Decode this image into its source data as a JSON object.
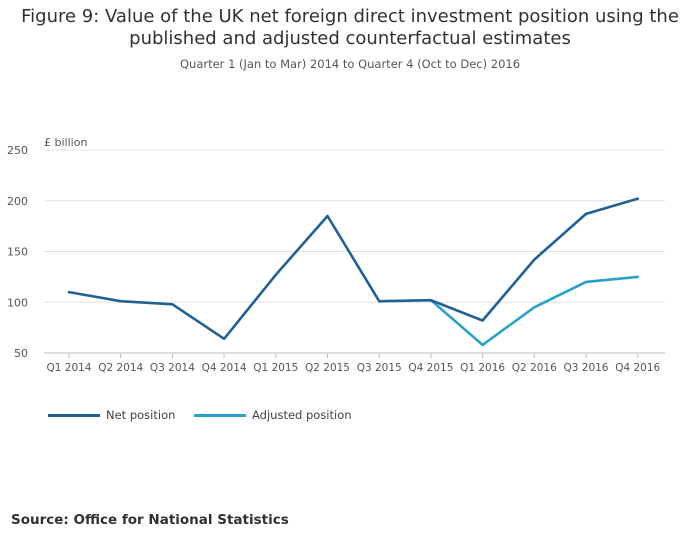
{
  "title": "Figure 9: Value of the UK net foreign direct investment position using the published and adjusted counterfactual estimates",
  "subtitle": "Quarter 1 (Jan to Mar) 2014 to Quarter 4 (Oct to Dec) 2016",
  "source": "Source: Office for National Statistics",
  "colors": {
    "net": "#206095",
    "adjusted": "#27a0cc",
    "grid": "#e0e0e0",
    "axis": "#bdbdbd"
  },
  "chart_data": {
    "type": "line",
    "ylabel": "£ billion",
    "ylim": [
      50,
      250
    ],
    "yticks": [
      50,
      100,
      150,
      200,
      250
    ],
    "grid": true,
    "legend_position": "bottom-left",
    "categories": [
      "Q1 2014",
      "Q2 2014",
      "Q3 2014",
      "Q4 2014",
      "Q1 2015",
      "Q2 2015",
      "Q3 2015",
      "Q4 2015",
      "Q1 2016",
      "Q2 2016",
      "Q3 2016",
      "Q4 2016"
    ],
    "series": [
      {
        "name": "Net position",
        "values": [
          110,
          101,
          98,
          64,
          127,
          185,
          101,
          102,
          82,
          142,
          187,
          202
        ]
      },
      {
        "name": "Adjusted position",
        "values": [
          null,
          null,
          null,
          null,
          null,
          null,
          null,
          102,
          58,
          95,
          120,
          125
        ]
      }
    ]
  }
}
